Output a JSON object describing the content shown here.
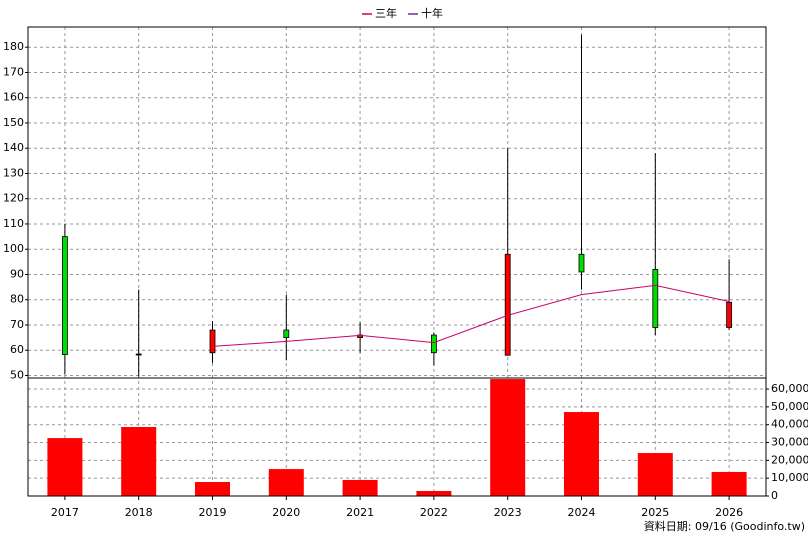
{
  "chart_data": {
    "type": "candlestick",
    "categories": [
      "2017",
      "2018",
      "2019",
      "2020",
      "2021",
      "2022",
      "2023",
      "2024",
      "2025",
      "2026"
    ],
    "open": [
      105,
      58.5,
      59,
      68,
      65,
      66,
      58,
      98,
      92,
      69
    ],
    "high": [
      110,
      84,
      71.5,
      82,
      71,
      67,
      140,
      185,
      138,
      96
    ],
    "low": [
      50.4,
      49.6,
      55,
      56,
      59,
      54,
      58,
      84,
      66,
      68
    ],
    "close": [
      58.3,
      58.5,
      68,
      65,
      66,
      59,
      98,
      91,
      69,
      79
    ],
    "up_color": "#ff0000",
    "down_color": "#00dd00",
    "flat_color": "#000000",
    "series": [
      {
        "name": "三年",
        "color": "#cc0066",
        "values": [
          null,
          null,
          61.5,
          63.5,
          65.9,
          63,
          73.8,
          82,
          85.7,
          79.3
        ]
      },
      {
        "name": "十年",
        "color": "#7030a0",
        "values": [
          null,
          null,
          null,
          null,
          null,
          null,
          null,
          null,
          null,
          null
        ]
      }
    ],
    "ylim": [
      49,
      188
    ],
    "yticks": [
      50,
      60,
      70,
      80,
      90,
      100,
      110,
      120,
      130,
      140,
      150,
      160,
      170,
      180
    ],
    "volume": {
      "axis": "y2",
      "color": "#ff0000",
      "values": [
        32500,
        38700,
        7850,
        15100,
        9000,
        2800,
        65600,
        47100,
        24100,
        13500
      ]
    },
    "y2lim": [
      0,
      66200
    ],
    "y2ticks": [
      0,
      {
        "value": 10000,
        "label": "10,000"
      },
      {
        "value": 20000,
        "label": "20,000"
      },
      {
        "value": 30000,
        "label": "30,000"
      },
      {
        "value": 40000,
        "label": "40,000"
      },
      {
        "value": 50000,
        "label": "50,000"
      },
      {
        "value": 60000,
        "label": "60,000"
      }
    ],
    "grid": true,
    "footnote": "資料日期: 09/16 (Goodinfo.tw)"
  }
}
